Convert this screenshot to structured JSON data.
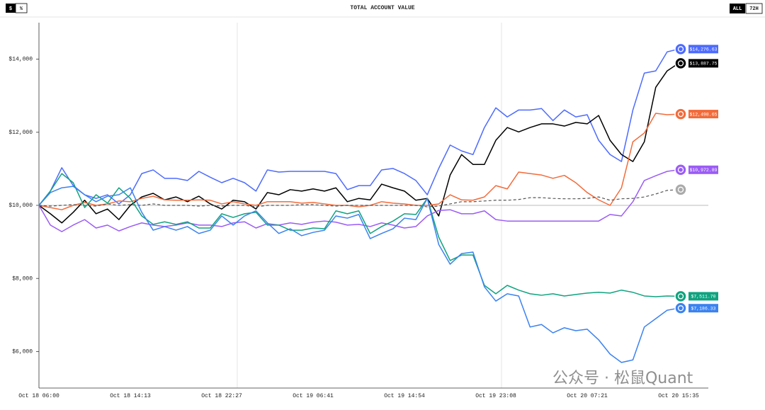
{
  "header": {
    "unit_buttons": [
      "$",
      "%"
    ],
    "range_buttons": [
      "ALL",
      "72H"
    ]
  },
  "watermark": "公众号 · 松鼠Quant",
  "chart_data": {
    "type": "line",
    "title": "TOTAL ACCOUNT VALUE",
    "categories": [
      "Oct 18 06:00",
      null,
      null,
      null,
      null,
      null,
      null,
      null,
      "Oct 18 14:13",
      null,
      null,
      null,
      null,
      null,
      null,
      null,
      "Oct 18 22:27",
      null,
      null,
      null,
      null,
      null,
      null,
      null,
      "Oct 19 06:41",
      null,
      null,
      null,
      null,
      null,
      null,
      null,
      "Oct 19 14:54",
      null,
      null,
      null,
      null,
      null,
      null,
      null,
      "Oct 19 23:08",
      null,
      null,
      null,
      null,
      null,
      null,
      null,
      "Oct 20 07:21",
      null,
      null,
      null,
      null,
      null,
      null,
      null,
      "Oct 20 15:35"
    ],
    "ylim": [
      5000,
      15000
    ],
    "yticks": [
      {
        "value": 6000,
        "label": "$6,000"
      },
      {
        "value": 8000,
        "label": "$8,000"
      },
      {
        "value": 10000,
        "label": "$10,000"
      },
      {
        "value": 12000,
        "label": "$12,000"
      },
      {
        "value": 14000,
        "label": "$14,000"
      }
    ],
    "reference_line": 10000,
    "series": [
      {
        "color": "#4d6bfe",
        "end_label": "$14,276.63",
        "values": [
          10000,
          10390,
          11030,
          10540,
          10290,
          10190,
          10290,
          10040,
          10290,
          10870,
          10970,
          10740,
          10740,
          10680,
          10930,
          10770,
          10620,
          10740,
          10620,
          10390,
          10970,
          10910,
          10930,
          10930,
          10930,
          10930,
          10870,
          10430,
          10540,
          10540,
          10970,
          11010,
          10870,
          10680,
          10290,
          11010,
          11650,
          11490,
          11390,
          12130,
          12670,
          12420,
          12610,
          12610,
          12650,
          12320,
          12610,
          12420,
          12480,
          11780,
          11390,
          11200,
          12610,
          13620,
          13680,
          14200,
          14276.63
        ]
      },
      {
        "color": "#000000",
        "end_label": "$13,887.75",
        "values": [
          10000,
          9770,
          9520,
          9810,
          10140,
          9770,
          9900,
          9610,
          10000,
          10230,
          10330,
          10150,
          10230,
          10100,
          10250,
          10040,
          9900,
          10140,
          10100,
          9900,
          10350,
          10290,
          10430,
          10390,
          10450,
          10390,
          10480,
          10100,
          10190,
          10150,
          10580,
          10480,
          10390,
          10140,
          10190,
          9710,
          10830,
          11390,
          11120,
          11120,
          11780,
          12130,
          12010,
          12130,
          12230,
          12230,
          12170,
          12270,
          12230,
          12460,
          11780,
          11390,
          11200,
          11740,
          13230,
          13680,
          13887.75
        ]
      },
      {
        "color": "#f26b3a",
        "end_label": "$12,498.65",
        "values": [
          10000,
          9940,
          9880,
          10000,
          10080,
          10000,
          10040,
          10120,
          10100,
          10190,
          10250,
          10150,
          10140,
          10140,
          10150,
          10140,
          10040,
          10100,
          10040,
          10000,
          10100,
          10100,
          10100,
          10060,
          10080,
          10040,
          10000,
          10000,
          9960,
          10000,
          10100,
          10060,
          10040,
          10000,
          10000,
          10040,
          10290,
          10150,
          10140,
          10230,
          10540,
          10450,
          10910,
          10870,
          10830,
          10740,
          10820,
          10620,
          10350,
          10150,
          10000,
          10480,
          11740,
          11980,
          12520,
          12480,
          12498.65
        ]
      },
      {
        "color": "#9b5cf5",
        "end_label": "$10,972.89",
        "values": [
          10000,
          9460,
          9280,
          9460,
          9610,
          9380,
          9460,
          9300,
          9420,
          9520,
          9460,
          9420,
          9460,
          9520,
          9460,
          9460,
          9420,
          9520,
          9550,
          9380,
          9500,
          9460,
          9520,
          9480,
          9540,
          9570,
          9540,
          9460,
          9480,
          9420,
          9520,
          9460,
          9380,
          9420,
          9710,
          9860,
          9880,
          9770,
          9770,
          9850,
          9610,
          9570,
          9570,
          9570,
          9570,
          9570,
          9570,
          9570,
          9570,
          9570,
          9750,
          9710,
          10100,
          10680,
          10810,
          10930,
          10972.89
        ]
      },
      {
        "color": "#555555",
        "dashed": true,
        "values": [
          10000,
          9980,
          10000,
          10020,
          10000,
          9980,
          10040,
          10000,
          10020,
          10000,
          10040,
          10000,
          10000,
          10000,
          9980,
          10000,
          9980,
          10000,
          10000,
          9960,
          10000,
          10000,
          10000,
          10020,
          10020,
          10000,
          9980,
          10000,
          10000,
          10000,
          10000,
          10000,
          10000,
          10000,
          9960,
          9980,
          10040,
          10100,
          10100,
          10120,
          10140,
          10140,
          10160,
          10210,
          10210,
          10190,
          10180,
          10180,
          10190,
          10230,
          10140,
          10180,
          10190,
          10230,
          10310,
          10410,
          10430
        ]
      },
      {
        "color": "#10a37f",
        "end_label": "$7,511.70",
        "values": [
          10000,
          10390,
          10870,
          10620,
          9940,
          10290,
          10060,
          10480,
          10190,
          9710,
          9480,
          9550,
          9480,
          9550,
          9380,
          9380,
          9770,
          9670,
          9770,
          9810,
          9460,
          9460,
          9320,
          9320,
          9380,
          9360,
          9850,
          9770,
          9850,
          9230,
          9420,
          9570,
          9770,
          9750,
          10190,
          9130,
          8490,
          8640,
          8640,
          7810,
          7580,
          7810,
          7680,
          7580,
          7540,
          7580,
          7520,
          7560,
          7600,
          7620,
          7600,
          7680,
          7620,
          7520,
          7500,
          7520,
          7511.7
        ]
      },
      {
        "color": "#3b82f0",
        "end_label": "$7,186.33",
        "values": [
          10000,
          10350,
          10480,
          10520,
          10290,
          10100,
          10250,
          10290,
          10480,
          9810,
          9320,
          9420,
          9320,
          9420,
          9230,
          9320,
          9710,
          9460,
          9710,
          9850,
          9520,
          9230,
          9360,
          9170,
          9260,
          9320,
          9710,
          9650,
          9750,
          9090,
          9230,
          9360,
          9650,
          9610,
          10190,
          8930,
          8390,
          8680,
          8720,
          7770,
          7380,
          7580,
          7520,
          6670,
          6740,
          6510,
          6650,
          6570,
          6610,
          6320,
          5930,
          5700,
          5770,
          6670,
          6900,
          7130,
          7186.33
        ]
      }
    ]
  }
}
